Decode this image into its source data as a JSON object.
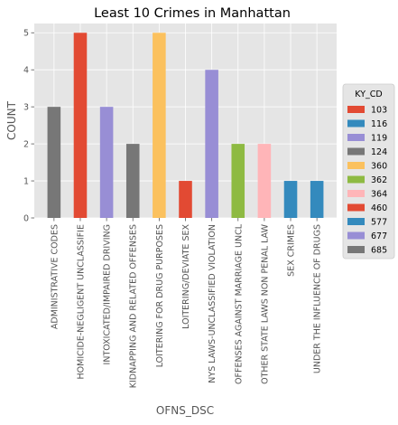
{
  "chart_data": {
    "type": "bar",
    "title": "Least 10 Crimes in Manhattan",
    "xlabel": "OFNS_DSC",
    "ylabel": "COUNT",
    "ylim": [
      0,
      5.25
    ],
    "yticks": [
      0,
      1,
      2,
      3,
      4,
      5
    ],
    "grid": true,
    "categories": [
      "ADMINISTRATIVE CODES",
      "HOMICIDE-NEGLIGENT UNCLASSIFIE",
      "INTOXICATED/IMPAIRED DRIVING",
      "KIDNAPPING AND RELATED OFFENSES",
      "LOITERING FOR DRUG PURPOSES",
      "LOITERING/DEVIATE SEX",
      "NYS LAWS-UNCLASSIFIED VIOLATION",
      "OFFENSES AGAINST MARRIAGE UNCL",
      "OTHER STATE LAWS NON PENAL LAW",
      "SEX CRIMES",
      "UNDER THE INFLUENCE OF DRUGS"
    ],
    "values": [
      3,
      5,
      3,
      2,
      5,
      1,
      4,
      2,
      2,
      1,
      1
    ],
    "bar_colors": [
      "#777777",
      "#E24A33",
      "#988ED5",
      "#777777",
      "#FBC15E",
      "#E24A33",
      "#988ED5",
      "#8EBA42",
      "#FFB5B8",
      "#348ABD",
      "#348ABD"
    ],
    "legend": {
      "title": "KY_CD",
      "position": "right",
      "entries": [
        {
          "label": "103",
          "color": "#E24A33"
        },
        {
          "label": "116",
          "color": "#348ABD"
        },
        {
          "label": "119",
          "color": "#988ED5"
        },
        {
          "label": "124",
          "color": "#777777"
        },
        {
          "label": "360",
          "color": "#FBC15E"
        },
        {
          "label": "362",
          "color": "#8EBA42"
        },
        {
          "label": "364",
          "color": "#FFB5B8"
        },
        {
          "label": "460",
          "color": "#E24A33"
        },
        {
          "label": "577",
          "color": "#348ABD"
        },
        {
          "label": "677",
          "color": "#988ED5"
        },
        {
          "label": "685",
          "color": "#777777"
        }
      ]
    }
  }
}
